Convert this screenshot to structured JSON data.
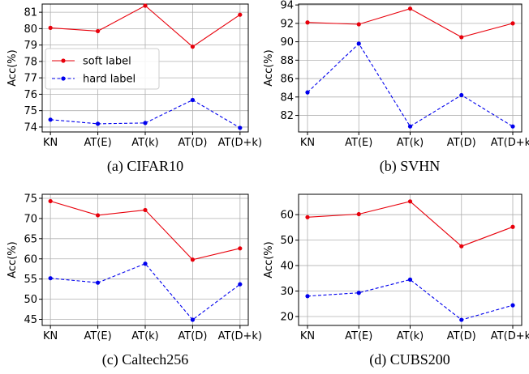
{
  "chart_data": [
    {
      "type": "line",
      "caption": "(a) CIFAR10",
      "categories": [
        "KN",
        "AT(E)",
        "AT(k)",
        "AT(D)",
        "AT(D+k)"
      ],
      "ylabel": "Acc(%)",
      "ylim": [
        73.7,
        81.5
      ],
      "yticks": [
        74,
        75,
        76,
        77,
        78,
        79,
        80,
        81
      ],
      "grid": true,
      "legend": {
        "placement": "left"
      },
      "series": [
        {
          "name": "soft label",
          "color": "#e8000b",
          "style": "solid",
          "values": [
            80.05,
            79.85,
            81.4,
            78.9,
            80.85
          ]
        },
        {
          "name": "hard label",
          "color": "#0000ee",
          "style": "dashed",
          "values": [
            74.45,
            74.2,
            74.25,
            75.65,
            73.95
          ]
        }
      ]
    },
    {
      "type": "line",
      "caption": "(b) SVHN",
      "categories": [
        "KN",
        "AT(E)",
        "AT(k)",
        "AT(D)",
        "AT(D+k)"
      ],
      "ylabel": "Acc(%)",
      "ylim": [
        80.2,
        94.1
      ],
      "yticks": [
        82,
        84,
        86,
        88,
        90,
        92,
        94
      ],
      "grid": true,
      "series": [
        {
          "name": "soft label",
          "color": "#e8000b",
          "style": "solid",
          "values": [
            92.1,
            91.9,
            93.6,
            90.5,
            92.0
          ]
        },
        {
          "name": "hard label",
          "color": "#0000ee",
          "style": "dashed",
          "values": [
            84.5,
            89.8,
            80.8,
            84.2,
            80.8
          ]
        }
      ]
    },
    {
      "type": "line",
      "caption": "(c) Caltech256",
      "categories": [
        "KN",
        "AT(E)",
        "AT(k)",
        "AT(D)",
        "AT(D+k)"
      ],
      "ylabel": "Acc(%)",
      "ylim": [
        43.5,
        76
      ],
      "yticks": [
        45,
        50,
        55,
        60,
        65,
        70,
        75
      ],
      "grid": true,
      "series": [
        {
          "name": "soft label",
          "color": "#e8000b",
          "style": "solid",
          "values": [
            74.3,
            70.8,
            72.1,
            59.8,
            62.6
          ]
        },
        {
          "name": "hard label",
          "color": "#0000ee",
          "style": "dashed",
          "values": [
            55.2,
            54.1,
            58.8,
            44.9,
            53.7
          ]
        }
      ]
    },
    {
      "type": "line",
      "caption": "(d) CUBS200",
      "categories": [
        "KN",
        "AT(E)",
        "AT(k)",
        "AT(D)",
        "AT(D+k)"
      ],
      "ylabel": "Acc(%)",
      "ylim": [
        16.5,
        68
      ],
      "yticks": [
        20,
        30,
        40,
        50,
        60
      ],
      "grid": true,
      "series": [
        {
          "name": "soft label",
          "color": "#e8000b",
          "style": "solid",
          "values": [
            59.0,
            60.2,
            65.2,
            47.6,
            55.2
          ]
        },
        {
          "name": "hard label",
          "color": "#0000ee",
          "style": "dashed",
          "values": [
            28.0,
            29.3,
            34.5,
            18.7,
            24.4
          ]
        }
      ]
    }
  ]
}
